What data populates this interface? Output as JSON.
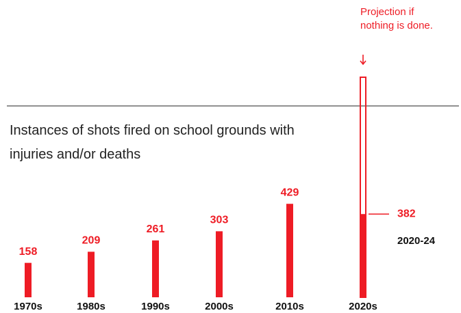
{
  "chart_data": {
    "type": "bar",
    "title": "Instances of shots fired on school grounds with injuries and/or deaths",
    "categories": [
      "1970s",
      "1980s",
      "1990s",
      "2000s",
      "2010s",
      "2020s"
    ],
    "values": [
      158,
      209,
      261,
      303,
      429,
      382
    ],
    "color": "#ee1c25",
    "partial_label": "2020-24",
    "projection": 1010,
    "projection_annotation": "Projection if nothing is done."
  }
}
